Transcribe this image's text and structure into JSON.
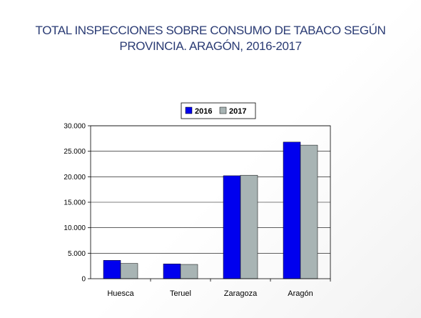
{
  "title_line1": "TOTAL INSPECCIONES SOBRE CONSUMO DE TABACO SEGÚN",
  "title_line2": "PROVINCIA. ARAGÓN, 2016-2017",
  "chart_data": {
    "type": "bar",
    "title": "TOTAL INSPECCIONES SOBRE CONSUMO DE TABACO SEGÚN PROVINCIA. ARAGÓN, 2016-2017",
    "categories": [
      "Huesca",
      "Teruel",
      "Zaragoza",
      "Aragón"
    ],
    "series": [
      {
        "name": "2016",
        "values": [
          3600,
          2900,
          20200,
          26800
        ],
        "color": "#0000ee"
      },
      {
        "name": "2017",
        "values": [
          3000,
          2800,
          20300,
          26200
        ],
        "color": "#a8b4b4"
      }
    ],
    "ylim": [
      0,
      30000
    ],
    "yticks": [
      0,
      5000,
      10000,
      15000,
      20000,
      25000,
      30000
    ],
    "ytick_labels": [
      "0",
      "5.000",
      "10.000",
      "15.000",
      "20.000",
      "25.000",
      "30.000"
    ],
    "grid": true,
    "legend_position": "top"
  }
}
